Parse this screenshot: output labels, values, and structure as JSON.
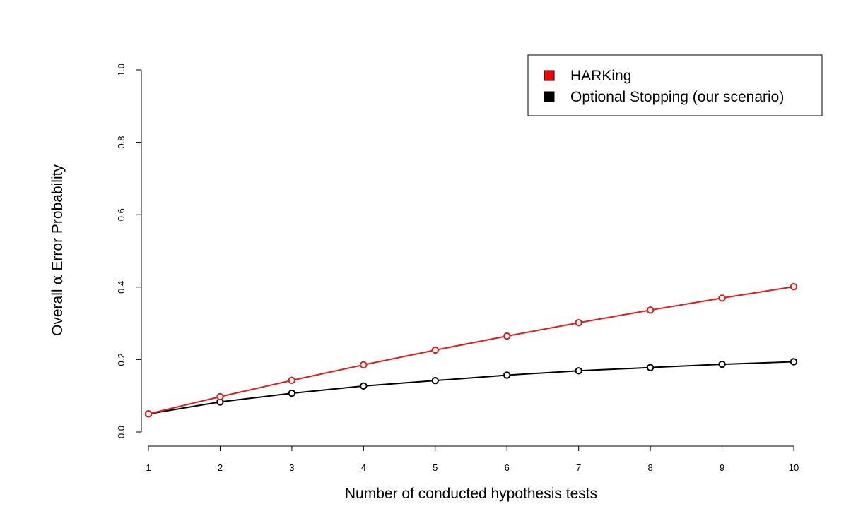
{
  "chart_data": {
    "type": "line",
    "title": "",
    "xlabel": "Number of conducted hypothesis tests",
    "ylabel_prefix": "Overall ",
    "ylabel_symbol": "α",
    "ylabel_suffix": " Error Probability",
    "x": [
      1,
      2,
      3,
      4,
      5,
      6,
      7,
      8,
      9,
      10
    ],
    "xlim": [
      1,
      10
    ],
    "ylim": [
      0,
      1
    ],
    "xticks": [
      1,
      2,
      3,
      4,
      5,
      6,
      7,
      8,
      9,
      10
    ],
    "yticks": [
      0,
      0.2,
      0.4,
      0.6,
      0.8,
      1
    ],
    "ytick_labels": [
      "0.0",
      "0.2",
      "0.4",
      "0.6",
      "0.8",
      "1.0"
    ],
    "grid": false,
    "legend_position": "top-right",
    "series": [
      {
        "name": "HARKing",
        "color": "#e41a1c",
        "legend_color": "#ff0000",
        "values": [
          0.05,
          0.0975,
          0.1426,
          0.1855,
          0.2262,
          0.2649,
          0.3017,
          0.3366,
          0.3698,
          0.4013
        ]
      },
      {
        "name": "Optional Stopping (our scenario)",
        "color": "#000000",
        "legend_color": "#000000",
        "values": [
          0.05,
          0.083,
          0.107,
          0.127,
          0.142,
          0.157,
          0.169,
          0.178,
          0.187,
          0.194
        ]
      }
    ]
  }
}
